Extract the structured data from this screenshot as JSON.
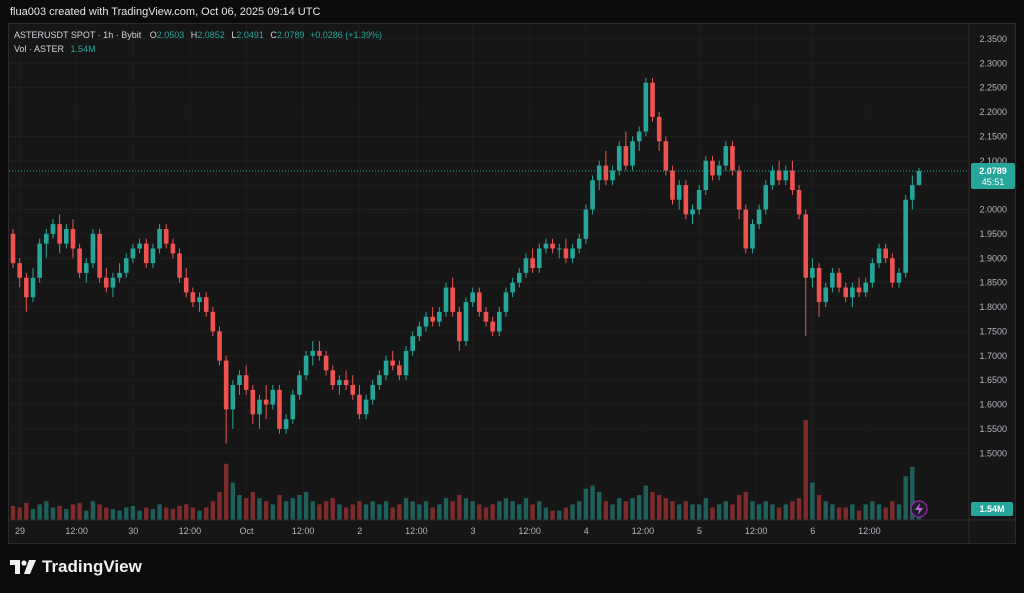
{
  "header": {
    "caption": "flua003 created with TradingView.com, Oct 06, 2025 09:14 UTC"
  },
  "legend": {
    "symbol": "ASTERUSDT SPOT · 1h · Bybit",
    "o_label": "O",
    "o_value": "2.0503",
    "h_label": "H",
    "h_value": "2.0852",
    "l_label": "L",
    "l_value": "2.0491",
    "c_label": "C",
    "c_value": "2.0789",
    "change": "+0.0286 (+1.39%)",
    "vol_label": "Vol · ASTER",
    "vol_value": "1.54M"
  },
  "price_tag": {
    "price": "2.0789",
    "countdown": "45:51"
  },
  "volume_tag": "1.54M",
  "brand": "TradingView",
  "colors": {
    "up": "#26a69a",
    "down": "#ef5350",
    "vol_up": "#1f5f59",
    "vol_down": "#7d2b2b"
  },
  "chart_data": {
    "type": "candlestick",
    "interval": "1h",
    "y_axis": {
      "range": [
        1.4,
        2.36
      ],
      "ticks": [
        "2.3500",
        "2.3000",
        "2.2500",
        "2.2000",
        "2.1500",
        "2.1000",
        "2.0500",
        "2.0000",
        "1.9500",
        "1.9000",
        "1.8500",
        "1.8000",
        "1.7500",
        "1.7000",
        "1.6500",
        "1.6000",
        "1.5500",
        "1.5000"
      ]
    },
    "x_axis": {
      "ticks": [
        "29",
        "12:00",
        "30",
        "12:00",
        "Oct",
        "12:00",
        "2",
        "12:00",
        "3",
        "12:00",
        "4",
        "12:00",
        "5",
        "12:00",
        "6",
        "12:00"
      ]
    },
    "current_price": 2.0789,
    "volume_max": 4.0,
    "candles": [
      [
        1.95,
        1.96,
        1.88,
        1.89,
        0.45
      ],
      [
        1.89,
        1.9,
        1.84,
        1.86,
        0.4
      ],
      [
        1.86,
        1.87,
        1.79,
        1.82,
        0.55
      ],
      [
        1.82,
        1.88,
        1.81,
        1.86,
        0.35
      ],
      [
        1.86,
        1.94,
        1.85,
        1.93,
        0.5
      ],
      [
        1.93,
        1.96,
        1.9,
        1.95,
        0.6
      ],
      [
        1.95,
        1.98,
        1.94,
        1.97,
        0.4
      ],
      [
        1.97,
        1.99,
        1.91,
        1.93,
        0.45
      ],
      [
        1.93,
        1.97,
        1.92,
        1.96,
        0.35
      ],
      [
        1.96,
        1.98,
        1.9,
        1.92,
        0.5
      ],
      [
        1.92,
        1.93,
        1.86,
        1.87,
        0.55
      ],
      [
        1.87,
        1.9,
        1.85,
        1.89,
        0.3
      ],
      [
        1.89,
        1.96,
        1.88,
        1.95,
        0.6
      ],
      [
        1.95,
        1.96,
        1.85,
        1.86,
        0.5
      ],
      [
        1.86,
        1.88,
        1.83,
        1.84,
        0.4
      ],
      [
        1.84,
        1.87,
        1.82,
        1.86,
        0.35
      ],
      [
        1.86,
        1.89,
        1.85,
        1.87,
        0.3
      ],
      [
        1.87,
        1.91,
        1.86,
        1.9,
        0.4
      ],
      [
        1.9,
        1.93,
        1.89,
        1.92,
        0.45
      ],
      [
        1.92,
        1.94,
        1.91,
        1.93,
        0.3
      ],
      [
        1.93,
        1.94,
        1.88,
        1.89,
        0.4
      ],
      [
        1.89,
        1.93,
        1.88,
        1.92,
        0.35
      ],
      [
        1.92,
        1.97,
        1.91,
        1.96,
        0.5
      ],
      [
        1.96,
        1.97,
        1.92,
        1.93,
        0.4
      ],
      [
        1.93,
        1.94,
        1.9,
        1.91,
        0.35
      ],
      [
        1.91,
        1.92,
        1.85,
        1.86,
        0.45
      ],
      [
        1.86,
        1.88,
        1.82,
        1.83,
        0.5
      ],
      [
        1.83,
        1.84,
        1.8,
        1.81,
        0.4
      ],
      [
        1.81,
        1.83,
        1.79,
        1.82,
        0.3
      ],
      [
        1.82,
        1.83,
        1.78,
        1.79,
        0.4
      ],
      [
        1.79,
        1.8,
        1.74,
        1.75,
        0.6
      ],
      [
        1.75,
        1.76,
        1.68,
        1.69,
        0.9
      ],
      [
        1.69,
        1.7,
        1.52,
        1.59,
        1.8
      ],
      [
        1.59,
        1.65,
        1.55,
        1.64,
        1.2
      ],
      [
        1.64,
        1.67,
        1.62,
        1.66,
        0.8
      ],
      [
        1.66,
        1.68,
        1.62,
        1.63,
        0.7
      ],
      [
        1.63,
        1.64,
        1.56,
        1.58,
        0.9
      ],
      [
        1.58,
        1.62,
        1.55,
        1.61,
        0.7
      ],
      [
        1.61,
        1.64,
        1.57,
        1.6,
        0.6
      ],
      [
        1.6,
        1.64,
        1.59,
        1.63,
        0.5
      ],
      [
        1.63,
        1.64,
        1.54,
        1.55,
        0.8
      ],
      [
        1.55,
        1.58,
        1.54,
        1.57,
        0.6
      ],
      [
        1.57,
        1.63,
        1.56,
        1.62,
        0.7
      ],
      [
        1.62,
        1.67,
        1.61,
        1.66,
        0.8
      ],
      [
        1.66,
        1.71,
        1.65,
        1.7,
        0.9
      ],
      [
        1.7,
        1.73,
        1.68,
        1.71,
        0.6
      ],
      [
        1.71,
        1.73,
        1.69,
        1.7,
        0.5
      ],
      [
        1.7,
        1.71,
        1.66,
        1.67,
        0.6
      ],
      [
        1.67,
        1.68,
        1.63,
        1.64,
        0.7
      ],
      [
        1.64,
        1.66,
        1.62,
        1.65,
        0.5
      ],
      [
        1.65,
        1.67,
        1.63,
        1.64,
        0.4
      ],
      [
        1.64,
        1.66,
        1.61,
        1.62,
        0.5
      ],
      [
        1.62,
        1.64,
        1.57,
        1.58,
        0.6
      ],
      [
        1.58,
        1.62,
        1.57,
        1.61,
        0.5
      ],
      [
        1.61,
        1.65,
        1.6,
        1.64,
        0.6
      ],
      [
        1.64,
        1.67,
        1.63,
        1.66,
        0.5
      ],
      [
        1.66,
        1.7,
        1.65,
        1.69,
        0.6
      ],
      [
        1.69,
        1.71,
        1.67,
        1.68,
        0.4
      ],
      [
        1.68,
        1.69,
        1.65,
        1.66,
        0.5
      ],
      [
        1.66,
        1.72,
        1.65,
        1.71,
        0.7
      ],
      [
        1.71,
        1.75,
        1.7,
        1.74,
        0.6
      ],
      [
        1.74,
        1.77,
        1.73,
        1.76,
        0.5
      ],
      [
        1.76,
        1.79,
        1.75,
        1.78,
        0.6
      ],
      [
        1.78,
        1.8,
        1.76,
        1.77,
        0.4
      ],
      [
        1.77,
        1.8,
        1.76,
        1.79,
        0.5
      ],
      [
        1.79,
        1.85,
        1.78,
        1.84,
        0.7
      ],
      [
        1.84,
        1.86,
        1.78,
        1.79,
        0.6
      ],
      [
        1.79,
        1.8,
        1.71,
        1.73,
        0.8
      ],
      [
        1.73,
        1.82,
        1.72,
        1.81,
        0.7
      ],
      [
        1.81,
        1.84,
        1.8,
        1.83,
        0.6
      ],
      [
        1.83,
        1.84,
        1.78,
        1.79,
        0.5
      ],
      [
        1.79,
        1.8,
        1.76,
        1.77,
        0.4
      ],
      [
        1.77,
        1.78,
        1.74,
        1.75,
        0.5
      ],
      [
        1.75,
        1.8,
        1.74,
        1.79,
        0.6
      ],
      [
        1.79,
        1.84,
        1.78,
        1.83,
        0.7
      ],
      [
        1.83,
        1.86,
        1.82,
        1.85,
        0.6
      ],
      [
        1.85,
        1.88,
        1.84,
        1.87,
        0.5
      ],
      [
        1.87,
        1.91,
        1.86,
        1.9,
        0.7
      ],
      [
        1.9,
        1.92,
        1.87,
        1.88,
        0.5
      ],
      [
        1.88,
        1.93,
        1.87,
        1.92,
        0.6
      ],
      [
        1.92,
        1.94,
        1.91,
        1.93,
        0.4
      ],
      [
        1.93,
        1.94,
        1.91,
        1.92,
        0.3
      ],
      [
        1.92,
        1.93,
        1.9,
        1.92,
        0.3
      ],
      [
        1.92,
        1.94,
        1.89,
        1.9,
        0.4
      ],
      [
        1.9,
        1.93,
        1.89,
        1.92,
        0.5
      ],
      [
        1.92,
        1.95,
        1.91,
        1.94,
        0.6
      ],
      [
        1.94,
        2.01,
        1.93,
        2.0,
        1.0
      ],
      [
        2.0,
        2.07,
        1.99,
        2.06,
        1.1
      ],
      [
        2.06,
        2.1,
        2.04,
        2.09,
        0.9
      ],
      [
        2.09,
        2.12,
        2.05,
        2.06,
        0.6
      ],
      [
        2.06,
        2.09,
        2.05,
        2.08,
        0.5
      ],
      [
        2.08,
        2.14,
        2.07,
        2.13,
        0.7
      ],
      [
        2.13,
        2.16,
        2.08,
        2.09,
        0.6
      ],
      [
        2.09,
        2.15,
        2.08,
        2.14,
        0.7
      ],
      [
        2.14,
        2.17,
        2.12,
        2.16,
        0.8
      ],
      [
        2.16,
        2.27,
        2.15,
        2.26,
        1.1
      ],
      [
        2.26,
        2.27,
        2.18,
        2.19,
        0.9
      ],
      [
        2.19,
        2.2,
        2.12,
        2.14,
        0.8
      ],
      [
        2.14,
        2.15,
        2.07,
        2.08,
        0.7
      ],
      [
        2.08,
        2.09,
        2.01,
        2.02,
        0.6
      ],
      [
        2.02,
        2.06,
        2.0,
        2.05,
        0.5
      ],
      [
        2.05,
        2.06,
        1.98,
        1.99,
        0.6
      ],
      [
        1.99,
        2.01,
        1.97,
        2.0,
        0.5
      ],
      [
        2.0,
        2.05,
        1.99,
        2.04,
        0.5
      ],
      [
        2.04,
        2.11,
        2.03,
        2.1,
        0.7
      ],
      [
        2.1,
        2.11,
        2.06,
        2.07,
        0.4
      ],
      [
        2.07,
        2.1,
        2.06,
        2.09,
        0.5
      ],
      [
        2.09,
        2.14,
        2.08,
        2.13,
        0.6
      ],
      [
        2.13,
        2.14,
        2.07,
        2.08,
        0.5
      ],
      [
        2.08,
        2.09,
        1.98,
        2.0,
        0.8
      ],
      [
        2.0,
        2.01,
        1.91,
        1.92,
        0.9
      ],
      [
        1.92,
        1.98,
        1.91,
        1.97,
        0.6
      ],
      [
        1.97,
        2.01,
        1.96,
        2.0,
        0.5
      ],
      [
        2.0,
        2.06,
        1.99,
        2.05,
        0.6
      ],
      [
        2.05,
        2.09,
        2.04,
        2.08,
        0.5
      ],
      [
        2.08,
        2.1,
        2.05,
        2.06,
        0.4
      ],
      [
        2.06,
        2.09,
        2.05,
        2.08,
        0.5
      ],
      [
        2.08,
        2.1,
        2.03,
        2.04,
        0.6
      ],
      [
        2.04,
        2.05,
        1.98,
        1.99,
        0.7
      ],
      [
        1.99,
        2.0,
        1.74,
        1.86,
        3.2
      ],
      [
        1.86,
        1.9,
        1.84,
        1.88,
        1.2
      ],
      [
        1.88,
        1.89,
        1.78,
        1.81,
        0.8
      ],
      [
        1.81,
        1.85,
        1.8,
        1.84,
        0.6
      ],
      [
        1.84,
        1.88,
        1.83,
        1.87,
        0.5
      ],
      [
        1.87,
        1.88,
        1.83,
        1.84,
        0.4
      ],
      [
        1.84,
        1.85,
        1.81,
        1.82,
        0.4
      ],
      [
        1.82,
        1.85,
        1.8,
        1.84,
        0.5
      ],
      [
        1.84,
        1.86,
        1.82,
        1.83,
        0.3
      ],
      [
        1.83,
        1.86,
        1.82,
        1.85,
        0.5
      ],
      [
        1.85,
        1.9,
        1.84,
        1.89,
        0.6
      ],
      [
        1.89,
        1.93,
        1.88,
        1.92,
        0.5
      ],
      [
        1.92,
        1.93,
        1.89,
        1.9,
        0.4
      ],
      [
        1.9,
        1.91,
        1.84,
        1.85,
        0.6
      ],
      [
        1.85,
        1.88,
        1.84,
        1.87,
        0.5
      ],
      [
        1.87,
        2.03,
        1.86,
        2.02,
        1.4
      ],
      [
        2.02,
        2.07,
        2.0,
        2.05,
        1.7
      ],
      [
        2.0503,
        2.0852,
        2.0491,
        2.0789,
        0.3
      ]
    ]
  }
}
